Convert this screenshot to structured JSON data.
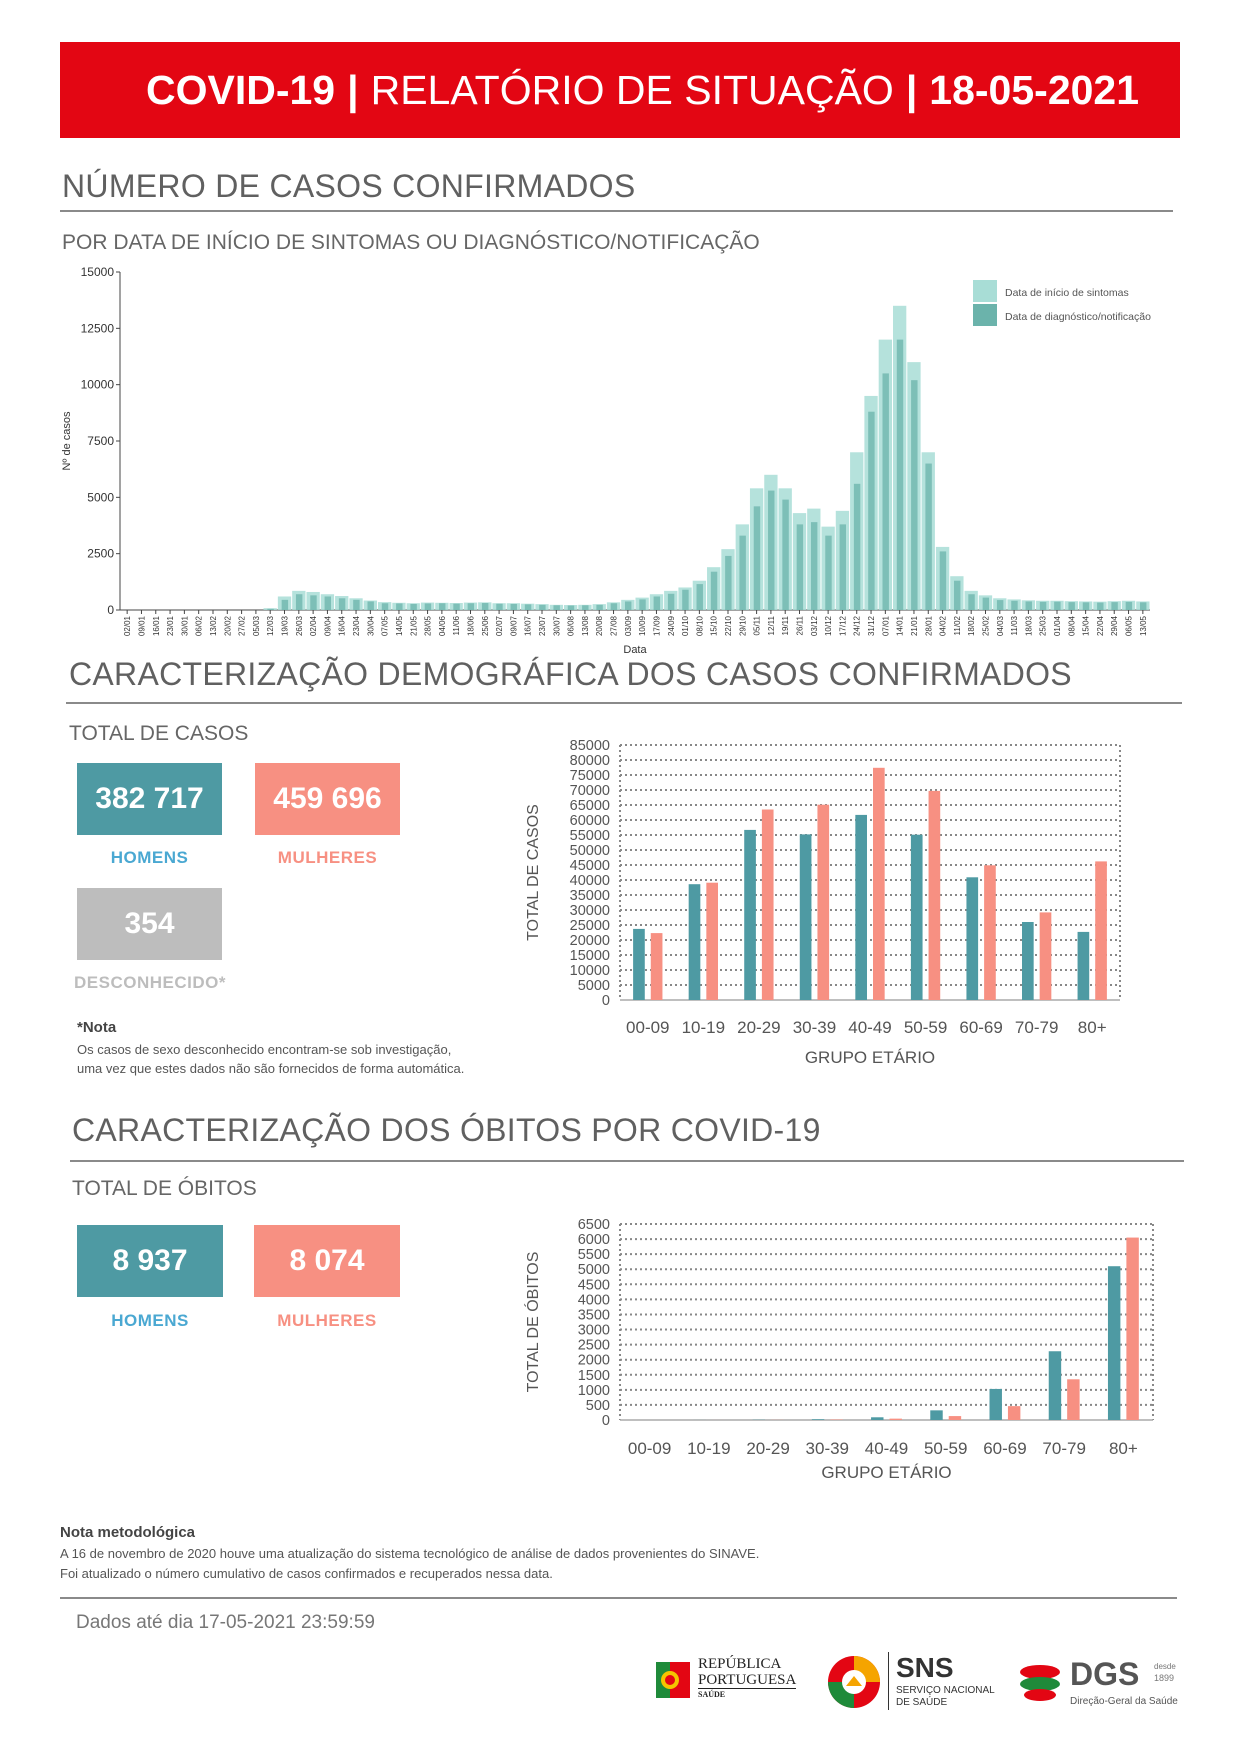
{
  "header": {
    "title_bold": "COVID-19",
    "separator": "|",
    "title_main": "RELATÓRIO DE SITUAÇÃO",
    "date": "18-05-2021"
  },
  "cases_section": {
    "title": "NÚMERO DE CASOS CONFIRMADOS",
    "subtitle": "POR DATA DE INÍCIO DE SINTOMAS OU DIAGNÓSTICO/NOTIFICAÇÃO",
    "chart_data": {
      "type": "bar",
      "ylabel": "Nº de casos",
      "xlabel": "Data",
      "yticks": [
        "0",
        "2500",
        "5000",
        "7500",
        "10000",
        "12500",
        "15000"
      ],
      "ylim": [
        0,
        15000
      ],
      "xticks": [
        "02/01",
        "09/01",
        "16/01",
        "23/01",
        "30/01",
        "06/02",
        "13/02",
        "20/02",
        "27/02",
        "05/03",
        "12/03",
        "19/03",
        "26/03",
        "02/04",
        "09/04",
        "16/04",
        "23/04",
        "30/04",
        "07/05",
        "14/05",
        "21/05",
        "28/05",
        "04/06",
        "11/06",
        "18/06",
        "25/06",
        "02/07",
        "09/07",
        "16/07",
        "23/07",
        "30/07",
        "06/08",
        "13/08",
        "20/08",
        "27/08",
        "03/09",
        "10/09",
        "17/09",
        "24/09",
        "01/10",
        "08/10",
        "15/10",
        "22/10",
        "29/10",
        "05/11",
        "12/11",
        "19/11",
        "26/11",
        "03/12",
        "10/12",
        "17/12",
        "24/12",
        "31/12",
        "07/01",
        "14/01",
        "21/01",
        "28/01",
        "04/02",
        "11/02",
        "18/02",
        "25/02",
        "04/03",
        "11/03",
        "18/03",
        "25/03",
        "01/04",
        "08/04",
        "15/04",
        "22/04",
        "29/04",
        "06/05",
        "13/05"
      ],
      "legend": [
        {
          "name": "Data de início de sintomas",
          "color": "#a8ddd6"
        },
        {
          "name": "Data de diagnóstico/notificação",
          "color": "#6bb3ab"
        }
      ],
      "legend_position": "top-right",
      "weekly_series": {
        "week_starts": [
          "02/01",
          "09/01",
          "16/01",
          "23/01",
          "30/01",
          "06/02",
          "13/02",
          "20/02",
          "27/02",
          "05/03",
          "12/03",
          "19/03",
          "26/03",
          "02/04",
          "09/04",
          "16/04",
          "23/04",
          "30/04",
          "07/05",
          "14/05",
          "21/05",
          "28/05",
          "04/06",
          "11/06",
          "18/06",
          "25/06",
          "02/07",
          "09/07",
          "16/07",
          "23/07",
          "30/07",
          "06/08",
          "13/08",
          "20/08",
          "27/08",
          "03/09",
          "10/09",
          "17/09",
          "24/09",
          "01/10",
          "08/10",
          "15/10",
          "22/10",
          "29/10",
          "05/11",
          "12/11",
          "19/11",
          "26/11",
          "03/12",
          "10/12",
          "17/12",
          "24/12",
          "31/12",
          "07/01",
          "14/01",
          "21/01",
          "28/01",
          "04/02",
          "11/02",
          "18/02",
          "25/02",
          "04/03",
          "11/03",
          "18/03",
          "25/03",
          "01/04",
          "08/04",
          "15/04",
          "22/04",
          "29/04",
          "06/05",
          "13/05"
        ],
        "symptom_onset": [
          0,
          0,
          0,
          0,
          0,
          0,
          0,
          0,
          0,
          0,
          80,
          600,
          850,
          800,
          700,
          620,
          520,
          420,
          350,
          320,
          300,
          330,
          320,
          310,
          330,
          340,
          300,
          300,
          280,
          260,
          230,
          220,
          230,
          260,
          340,
          450,
          550,
          700,
          850,
          1000,
          1300,
          1900,
          2700,
          3800,
          5400,
          6000,
          5400,
          4300,
          4500,
          3700,
          4400,
          7000,
          9500,
          12000,
          13500,
          11000,
          7000,
          2800,
          1500,
          850,
          650,
          520,
          470,
          430,
          410,
          410,
          390,
          380,
          370,
          390,
          410,
          380
        ],
        "diagnosis": [
          0,
          0,
          0,
          0,
          0,
          0,
          0,
          0,
          0,
          0,
          50,
          450,
          700,
          650,
          600,
          520,
          450,
          380,
          300,
          290,
          270,
          290,
          300,
          280,
          300,
          310,
          280,
          270,
          250,
          230,
          210,
          200,
          210,
          230,
          300,
          380,
          470,
          600,
          720,
          900,
          1150,
          1700,
          2400,
          3300,
          4600,
          5300,
          4900,
          3800,
          3900,
          3300,
          3800,
          5600,
          8800,
          10500,
          12000,
          10200,
          6500,
          2600,
          1300,
          700,
          550,
          440,
          410,
          380,
          360,
          370,
          350,
          340,
          330,
          350,
          360,
          340
        ]
      }
    }
  },
  "demo_section": {
    "title": "CARACTERIZAÇÃO DEMOGRÁFICA DOS CASOS CONFIRMADOS",
    "total_label": "TOTAL DE CASOS",
    "men_value": "382 717",
    "women_value": "459 696",
    "unknown_value": "354",
    "men_label": "HOMENS",
    "women_label": "MULHERES",
    "unknown_label": "DESCONHECIDO*",
    "note_head": "*Nota",
    "note_line1": "Os casos de sexo desconhecido encontram-se sob investigação,",
    "note_line2": "uma vez que estes dados não são fornecidos de forma automática.",
    "chart_data": {
      "type": "bar",
      "ylabel": "TOTAL DE CASOS",
      "xlabel": "GRUPO ETÁRIO",
      "categories": [
        "00-09",
        "10-19",
        "20-29",
        "30-39",
        "40-49",
        "50-59",
        "60-69",
        "70-79",
        "80+"
      ],
      "ylim": [
        0,
        85000
      ],
      "yticks": [
        "0",
        "5000",
        "10000",
        "15000",
        "20000",
        "25000",
        "30000",
        "35000",
        "40000",
        "45000",
        "50000",
        "55000",
        "60000",
        "65000",
        "70000",
        "75000",
        "80000",
        "85000"
      ],
      "series": [
        {
          "values": [
            23700,
            38600,
            56700,
            55200,
            61700,
            55100,
            40900,
            26000,
            22700
          ],
          "color": "#4e9aa3"
        },
        {
          "values": [
            22300,
            39100,
            63500,
            65100,
            77400,
            69700,
            44900,
            29200,
            46200
          ],
          "color": "#f79082"
        }
      ]
    }
  },
  "deaths_section": {
    "title": "CARACTERIZAÇÃO DOS ÓBITOS POR COVID-19",
    "total_label": "TOTAL DE ÓBITOS",
    "men_value": "8 937",
    "women_value": "8 074",
    "men_label": "HOMENS",
    "women_label": "MULHERES",
    "chart_data": {
      "type": "bar",
      "ylabel": "TOTAL DE ÓBITOS",
      "xlabel": "GRUPO ETÁRIO",
      "categories": [
        "00-09",
        "10-19",
        "20-29",
        "30-39",
        "40-49",
        "50-59",
        "60-69",
        "70-79",
        "80+"
      ],
      "ylim": [
        0,
        6500
      ],
      "yticks": [
        "0",
        "500",
        "1000",
        "1500",
        "2000",
        "2500",
        "3000",
        "3500",
        "4000",
        "4500",
        "5000",
        "5500",
        "6000",
        "6500"
      ],
      "series": [
        {
          "values": [
            0,
            2,
            8,
            25,
            90,
            320,
            1030,
            2280,
            5100
          ],
          "color": "#4e9aa3"
        },
        {
          "values": [
            0,
            1,
            4,
            15,
            45,
            130,
            460,
            1350,
            6050
          ],
          "color": "#f79082"
        }
      ]
    }
  },
  "method_note": {
    "head": "Nota metodológica",
    "line1": "A 16 de novembro de 2020 houve uma atualização do sistema tecnológico de análise de dados provenientes do SINAVE.",
    "line2": "Foi atualizado o número cumulativo de casos confirmados e recuperados nessa data."
  },
  "footer": {
    "data_until": "Dados até dia 17-05-2021 23:59:59",
    "logo_rp_line1": "REPÚBLICA",
    "logo_rp_line2": "PORTUGUESA",
    "logo_rp_line3": "SAÚDE",
    "logo_sns": "SNS",
    "logo_sns_line1": "SERVIÇO NACIONAL",
    "logo_sns_line2": "DE SAÚDE",
    "logo_dgs": "DGS",
    "logo_dgs_since": "desde",
    "logo_dgs_year": "1899",
    "logo_dgs_name": "Direção-Geral da Saúde"
  },
  "colors": {
    "banner": "#e30613",
    "men": "#4e9aa3",
    "women": "#f79082",
    "unknown": "#bdbdbd"
  }
}
